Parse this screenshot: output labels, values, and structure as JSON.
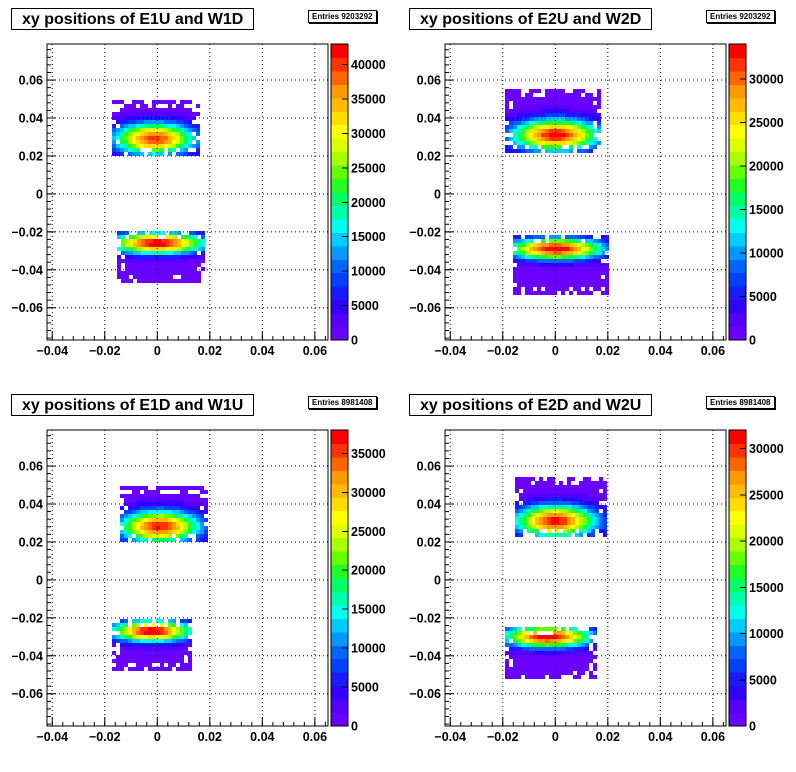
{
  "chart_data": [
    {
      "type": "heatmap",
      "title": "xy positions of E1U and W1D",
      "entries_label": "Entries",
      "entries": "9203292",
      "xlim": [
        -0.042,
        0.065
      ],
      "ylim": [
        -0.077,
        0.079
      ],
      "xticks": [
        "−0.04",
        "−0.02",
        "0",
        "0.02",
        "0.04",
        "0.06"
      ],
      "xtick_values": [
        -0.04,
        -0.02,
        0,
        0.02,
        0.04,
        0.06
      ],
      "yticks": [
        "−0.06",
        "−0.04",
        "−0.02",
        "0",
        "0.02",
        "0.04",
        "0.06"
      ],
      "ytick_values": [
        -0.06,
        -0.04,
        -0.02,
        0,
        0.02,
        0.04,
        0.06
      ],
      "zlim": [
        0,
        43000
      ],
      "zticks": [
        "0",
        "5000",
        "10000",
        "15000",
        "20000",
        "25000",
        "30000",
        "35000",
        "40000"
      ],
      "ztick_values": [
        0,
        5000,
        10000,
        15000,
        20000,
        25000,
        30000,
        35000,
        40000
      ],
      "grid": true,
      "blobs": [
        {
          "x0": -0.017,
          "x1": 0.015,
          "y0": 0.02,
          "y1": 0.049,
          "cx": -0.001,
          "cy": 0.029,
          "rx": 0.011,
          "ry": 0.006,
          "peak": 40000
        },
        {
          "x0": -0.015,
          "x1": 0.018,
          "y0": -0.046,
          "y1": -0.02,
          "cx": 0.0,
          "cy": -0.026,
          "rx": 0.013,
          "ry": 0.004,
          "peak": 43000
        }
      ]
    },
    {
      "type": "heatmap",
      "title": "xy positions of E2U and W2D",
      "entries_label": "Entries",
      "entries": "9203292",
      "xlim": [
        -0.042,
        0.065
      ],
      "ylim": [
        -0.077,
        0.079
      ],
      "xticks": [
        "−0.04",
        "−0.02",
        "0",
        "0.02",
        "0.04",
        "0.06"
      ],
      "xtick_values": [
        -0.04,
        -0.02,
        0,
        0.02,
        0.04,
        0.06
      ],
      "yticks": [
        "−0.06",
        "−0.04",
        "−0.02",
        "0",
        "0.02",
        "0.04",
        "0.06"
      ],
      "ytick_values": [
        -0.06,
        -0.04,
        -0.02,
        0,
        0.02,
        0.04,
        0.06
      ],
      "zlim": [
        0,
        34000
      ],
      "zticks": [
        "0",
        "5000",
        "10000",
        "15000",
        "20000",
        "25000",
        "30000"
      ],
      "ztick_values": [
        0,
        5000,
        10000,
        15000,
        20000,
        25000,
        30000
      ],
      "grid": true,
      "blobs": [
        {
          "x0": -0.019,
          "x1": 0.017,
          "y0": 0.023,
          "y1": 0.055,
          "cx": 0.0,
          "cy": 0.031,
          "rx": 0.012,
          "ry": 0.006,
          "peak": 33000
        },
        {
          "x0": -0.016,
          "x1": 0.019,
          "y0": -0.052,
          "y1": -0.022,
          "cx": 0.0,
          "cy": -0.029,
          "rx": 0.013,
          "ry": 0.004,
          "peak": 34000
        }
      ]
    },
    {
      "type": "heatmap",
      "title": "xy positions of E1D and W1U",
      "entries_label": "Entries",
      "entries": "8981408",
      "xlim": [
        -0.042,
        0.065
      ],
      "ylim": [
        -0.077,
        0.079
      ],
      "xticks": [
        "−0.04",
        "−0.02",
        "0",
        "0.02",
        "0.04",
        "0.06"
      ],
      "xtick_values": [
        -0.04,
        -0.02,
        0,
        0.02,
        0.04,
        0.06
      ],
      "yticks": [
        "−0.06",
        "−0.04",
        "−0.02",
        "0",
        "0.02",
        "0.04",
        "0.06"
      ],
      "ytick_values": [
        -0.06,
        -0.04,
        -0.02,
        0,
        0.02,
        0.04,
        0.06
      ],
      "zlim": [
        0,
        38000
      ],
      "zticks": [
        "0",
        "5000",
        "10000",
        "15000",
        "20000",
        "25000",
        "30000",
        "35000"
      ],
      "ztick_values": [
        0,
        5000,
        10000,
        15000,
        20000,
        25000,
        30000,
        35000
      ],
      "grid": true,
      "blobs": [
        {
          "x0": -0.014,
          "x1": 0.018,
          "y0": 0.022,
          "y1": 0.049,
          "cx": 0.001,
          "cy": 0.028,
          "rx": 0.011,
          "ry": 0.006,
          "peak": 36000
        },
        {
          "x0": -0.017,
          "x1": 0.013,
          "y0": -0.047,
          "y1": -0.021,
          "cx": -0.002,
          "cy": -0.027,
          "rx": 0.011,
          "ry": 0.004,
          "peak": 38000
        }
      ]
    },
    {
      "type": "heatmap",
      "title": "xy positions of E2D and W2U",
      "entries_label": "Entries",
      "entries": "8981408",
      "xlim": [
        -0.042,
        0.065
      ],
      "ylim": [
        -0.077,
        0.079
      ],
      "xticks": [
        "−0.04",
        "−0.02",
        "0",
        "0.02",
        "0.04",
        "0.06"
      ],
      "xtick_values": [
        -0.04,
        -0.02,
        0,
        0.02,
        0.04,
        0.06
      ],
      "yticks": [
        "−0.06",
        "−0.04",
        "−0.02",
        "0",
        "0.02",
        "0.04",
        "0.06"
      ],
      "ytick_values": [
        -0.06,
        -0.04,
        -0.02,
        0,
        0.02,
        0.04,
        0.06
      ],
      "zlim": [
        0,
        32000
      ],
      "zticks": [
        "0",
        "5000",
        "10000",
        "15000",
        "20000",
        "25000",
        "30000"
      ],
      "ztick_values": [
        0,
        5000,
        10000,
        15000,
        20000,
        25000,
        30000
      ],
      "grid": true,
      "blobs": [
        {
          "x0": -0.015,
          "x1": 0.019,
          "y0": 0.023,
          "y1": 0.054,
          "cx": 0.0,
          "cy": 0.031,
          "rx": 0.011,
          "ry": 0.006,
          "peak": 31000
        },
        {
          "x0": -0.019,
          "x1": 0.015,
          "y0": -0.051,
          "y1": -0.025,
          "cx": -0.003,
          "cy": -0.03,
          "rx": 0.012,
          "ry": 0.004,
          "peak": 32000
        }
      ]
    }
  ],
  "palette": [
    "#6a00ff",
    "#5500ff",
    "#3300ff",
    "#1a1aff",
    "#0040ff",
    "#0066ff",
    "#0099ff",
    "#00ccff",
    "#00ffee",
    "#00ffaa",
    "#00ff66",
    "#22ff22",
    "#66ff00",
    "#aaff00",
    "#ddff00",
    "#ffff00",
    "#ffdd00",
    "#ffbb00",
    "#ff9900",
    "#ff6600",
    "#ff3300",
    "#ff0000"
  ]
}
